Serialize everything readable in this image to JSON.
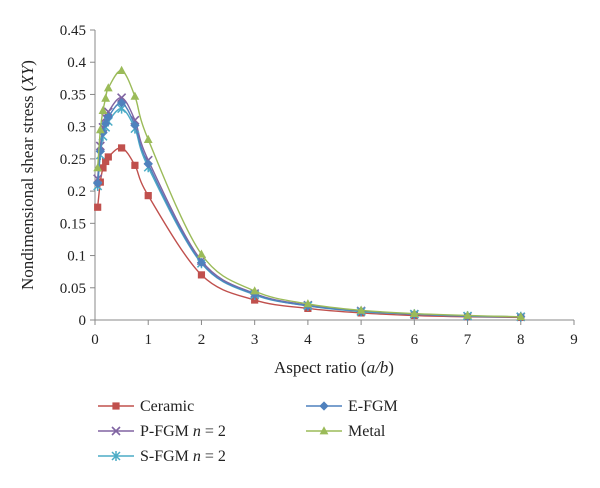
{
  "chart_data": {
    "type": "line",
    "title": "",
    "xlabel": "Aspect ratio (a/b)",
    "ylabel": "Nondimensional shear stress (XY)",
    "xlim": [
      0,
      9
    ],
    "ylim": [
      0,
      0.45
    ],
    "x_ticks": [
      "0",
      "1",
      "2",
      "3",
      "4",
      "5",
      "6",
      "7",
      "8",
      "9"
    ],
    "y_ticks": [
      "0",
      "0.05",
      "0.1",
      "0.15",
      "0.2",
      "0.25",
      "0.3",
      "0.35",
      "0.4",
      "0.45"
    ],
    "grid": false,
    "legend_position": "bottom",
    "x": [
      0.05,
      0.1,
      0.15,
      0.2,
      0.25,
      0.5,
      0.75,
      1,
      2,
      3,
      4,
      5,
      6,
      7,
      8
    ],
    "series": [
      {
        "name": "Ceramic",
        "marker": "square",
        "color": "#c0504d",
        "values": [
          0.175,
          0.214,
          0.236,
          0.246,
          0.253,
          0.267,
          0.24,
          0.193,
          0.07,
          0.031,
          0.018,
          0.011,
          0.007,
          0.005,
          0.004
        ]
      },
      {
        "name": "P-FGM n = 2",
        "marker": "x",
        "color": "#8064a2",
        "values": [
          0.219,
          0.27,
          0.299,
          0.314,
          0.323,
          0.345,
          0.31,
          0.248,
          0.092,
          0.041,
          0.023,
          0.014,
          0.009,
          0.006,
          0.005
        ]
      },
      {
        "name": "S-FGM n = 2",
        "marker": "star",
        "color": "#4bacc6",
        "values": [
          0.208,
          0.256,
          0.285,
          0.299,
          0.308,
          0.328,
          0.297,
          0.237,
          0.088,
          0.039,
          0.022,
          0.013,
          0.009,
          0.006,
          0.005
        ]
      },
      {
        "name": "E-FGM",
        "marker": "diamond",
        "color": "#4f81bd",
        "values": [
          0.212,
          0.262,
          0.291,
          0.305,
          0.315,
          0.337,
          0.302,
          0.242,
          0.089,
          0.04,
          0.022,
          0.014,
          0.009,
          0.006,
          0.005
        ]
      },
      {
        "name": "Metal",
        "marker": "triangle",
        "color": "#9bbb59",
        "values": [
          0.236,
          0.295,
          0.325,
          0.344,
          0.36,
          0.387,
          0.347,
          0.28,
          0.102,
          0.045,
          0.025,
          0.015,
          0.01,
          0.007,
          0.005
        ]
      }
    ]
  }
}
